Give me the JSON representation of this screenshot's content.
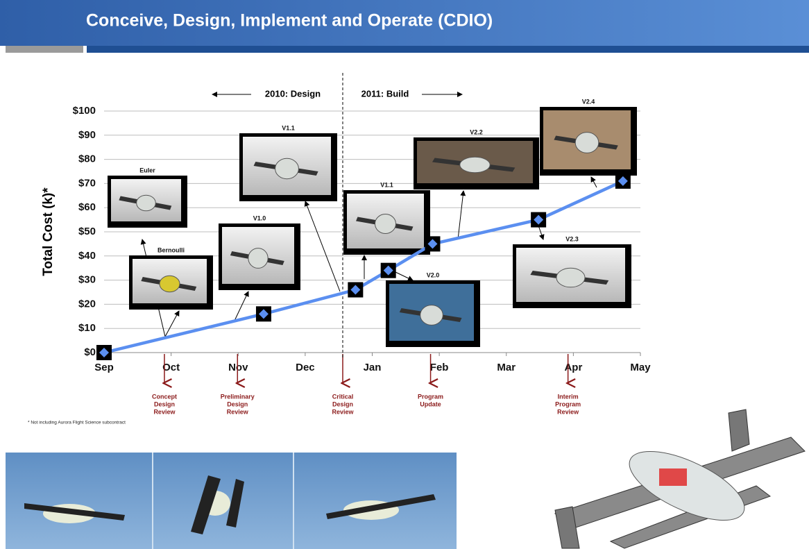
{
  "header": {
    "title": "Conceive, Design, Implement and Operate (CDIO)"
  },
  "chart_data": {
    "type": "line",
    "ylabel": "Total Cost (k)*",
    "x": [
      0,
      2.38,
      3.75,
      4.24,
      4.9,
      6.48,
      7.74
    ],
    "values": [
      0,
      16,
      26,
      34,
      45,
      55,
      71
    ],
    "color": "#5b8ff0",
    "xlim": [
      0,
      8
    ],
    "xticks": [
      {
        "value": 0,
        "label": "Sep"
      },
      {
        "value": 1,
        "label": "Oct"
      },
      {
        "value": 2,
        "label": "Nov"
      },
      {
        "value": 3,
        "label": "Dec"
      },
      {
        "value": 4,
        "label": "Jan"
      },
      {
        "value": 5,
        "label": "Feb"
      },
      {
        "value": 6,
        "label": "Mar"
      },
      {
        "value": 7,
        "label": "Apr"
      },
      {
        "value": 8,
        "label": "May"
      }
    ],
    "ylim": [
      0,
      100
    ],
    "yticks": [
      {
        "value": 0,
        "label": "$0"
      },
      {
        "value": 10,
        "label": "$10"
      },
      {
        "value": 20,
        "label": "$20"
      },
      {
        "value": 30,
        "label": "$30"
      },
      {
        "value": 40,
        "label": "$40"
      },
      {
        "value": 50,
        "label": "$50"
      },
      {
        "value": 60,
        "label": "$60"
      },
      {
        "value": 70,
        "label": "$70"
      },
      {
        "value": 80,
        "label": "$80"
      },
      {
        "value": 90,
        "label": "$90"
      },
      {
        "value": 100,
        "label": "$100"
      }
    ],
    "grid": true,
    "annotations": [
      "2010: Design",
      "2011: Build"
    ],
    "milestones": [
      {
        "x": 0.9,
        "label": [
          "Concept",
          "Design",
          "Review"
        ]
      },
      {
        "x": 1.99,
        "label": [
          "Preliminary",
          "Design",
          "Review"
        ]
      },
      {
        "x": 3.56,
        "label": [
          "Critical",
          "Design",
          "Review"
        ]
      },
      {
        "x": 4.87,
        "label": [
          "Program",
          "Update"
        ]
      },
      {
        "x": 6.92,
        "label": [
          "Interim",
          "Program",
          "Review"
        ]
      }
    ],
    "footnote": "* Not including Aurora Flight Science subcontract"
  },
  "images": {
    "labels": [
      "Euler",
      "Bernoulli",
      "V1.0",
      "V1.1",
      "V1.1",
      "V2.0",
      "V2.2",
      "V2.3",
      "V2.4"
    ]
  }
}
